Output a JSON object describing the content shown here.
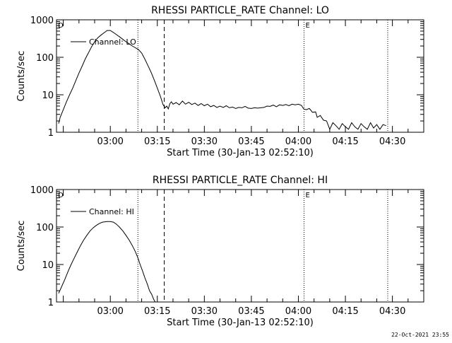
{
  "colors": {
    "background": "#ffffff",
    "foreground": "#000000"
  },
  "footer": {
    "timestamp": "22-Oct-2021 23:55"
  },
  "chart_data": [
    {
      "type": "line",
      "title": "RHESSI PARTICLE_RATE Channel: LO",
      "xlabel": "Start Time (30-Jan-13 02:52:10)",
      "ylabel": "Counts/sec",
      "yscale": "log",
      "xlim": [
        -17.17,
        100.0
      ],
      "ylim": [
        1,
        1000
      ],
      "xticks": [
        0,
        15,
        30,
        45,
        60,
        75,
        90
      ],
      "xticklabels": [
        "03:00",
        "03:15",
        "03:30",
        "03:45",
        "04:00",
        "04:15",
        "04:30"
      ],
      "yticks": [
        1,
        10,
        100,
        1000
      ],
      "yticklabels": [
        "1",
        "10",
        "100",
        "1000"
      ],
      "corner_labels": {
        "left": "D",
        "right": "E"
      },
      "markers": [
        {
          "x": 8.8,
          "style": "dotted"
        },
        {
          "x": 17.2,
          "style": "dashed"
        },
        {
          "x": 61.8,
          "style": "dotted"
        },
        {
          "x": 88.5,
          "style": "dotted"
        }
      ],
      "legend": {
        "entry": "Channel: LO",
        "placement": "top-left"
      },
      "series": [
        {
          "name": "Channel: LO",
          "points": [
            [
              -16.5,
              1.7
            ],
            [
              -16,
              2.5
            ],
            [
              -15,
              4
            ],
            [
              -14,
              6.5
            ],
            [
              -13,
              10
            ],
            [
              -12,
              15
            ],
            [
              -11,
              24
            ],
            [
              -10,
              38
            ],
            [
              -9,
              58
            ],
            [
              -8,
              90
            ],
            [
              -7,
              130
            ],
            [
              -6,
              190
            ],
            [
              -5,
              260
            ],
            [
              -4,
              330
            ],
            [
              -3,
              390
            ],
            [
              -2,
              450
            ],
            [
              -1,
              520
            ],
            [
              0,
              520
            ],
            [
              1,
              460
            ],
            [
              2,
              400
            ],
            [
              3,
              350
            ],
            [
              4,
              300
            ],
            [
              5,
              260
            ],
            [
              6,
              230
            ],
            [
              7,
              200
            ],
            [
              8,
              180
            ],
            [
              9,
              160
            ],
            [
              10,
              130
            ],
            [
              11,
              90
            ],
            [
              12,
              60
            ],
            [
              13,
              40
            ],
            [
              14,
              25
            ],
            [
              15,
              15
            ],
            [
              16,
              9
            ],
            [
              16.8,
              5.5
            ],
            [
              17.5,
              4.5
            ],
            [
              18,
              5
            ],
            [
              18.5,
              4.2
            ],
            [
              19,
              5.8
            ],
            [
              19.5,
              6.5
            ],
            [
              20,
              5.6
            ],
            [
              21,
              6.2
            ],
            [
              22,
              5.4
            ],
            [
              23,
              6.8
            ],
            [
              24,
              5.6
            ],
            [
              25,
              6.3
            ],
            [
              26,
              5.5
            ],
            [
              27,
              6
            ],
            [
              28,
              5.2
            ],
            [
              29,
              5.8
            ],
            [
              30,
              5.1
            ],
            [
              31,
              5.6
            ],
            [
              32,
              4.8
            ],
            [
              33,
              5.2
            ],
            [
              34,
              4.6
            ],
            [
              35,
              5
            ],
            [
              36,
              4.6
            ],
            [
              37,
              5.1
            ],
            [
              38,
              4.5
            ],
            [
              39,
              4.7
            ],
            [
              40,
              4.3
            ],
            [
              41,
              4.6
            ],
            [
              42,
              4.5
            ],
            [
              43,
              4.9
            ],
            [
              44,
              4.4
            ],
            [
              45,
              4.3
            ],
            [
              46,
              4.5
            ],
            [
              47,
              4.4
            ],
            [
              48,
              4.5
            ],
            [
              49,
              4.6
            ],
            [
              50,
              5
            ],
            [
              51,
              4.9
            ],
            [
              52,
              5.3
            ],
            [
              53,
              4.8
            ],
            [
              54,
              5.4
            ],
            [
              55,
              5.2
            ],
            [
              56,
              5.5
            ],
            [
              57,
              5.1
            ],
            [
              58,
              5.6
            ],
            [
              59,
              5.4
            ],
            [
              60,
              5.6
            ],
            [
              61,
              5.2
            ],
            [
              61.7,
              4.2
            ],
            [
              62.5,
              4
            ],
            [
              63.5,
              4.3
            ],
            [
              64.5,
              3.4
            ],
            [
              65.5,
              3.5
            ],
            [
              66,
              2.5
            ],
            [
              67,
              2.8
            ],
            [
              68,
              2.1
            ],
            [
              69,
              2
            ],
            [
              70,
              1.2
            ],
            [
              71,
              1.8
            ],
            [
              72,
              1.5
            ],
            [
              73,
              1.2
            ],
            [
              74,
              1.7
            ],
            [
              75,
              1.4
            ],
            [
              76,
              1.2
            ],
            [
              77,
              1.8
            ],
            [
              78,
              1.4
            ],
            [
              79,
              1.2
            ],
            [
              80,
              1.7
            ],
            [
              81,
              1.4
            ],
            [
              82,
              1.2
            ],
            [
              83,
              1.8
            ],
            [
              84,
              1.3
            ],
            [
              85,
              1.6
            ],
            [
              86,
              1.2
            ],
            [
              87,
              1.6
            ],
            [
              88,
              1.5
            ]
          ]
        }
      ]
    },
    {
      "type": "line",
      "title": "RHESSI PARTICLE_RATE Channel: HI",
      "xlabel": "Start Time (30-Jan-13 02:52:10)",
      "ylabel": "Counts/sec",
      "yscale": "log",
      "xlim": [
        -17.17,
        100.0
      ],
      "ylim": [
        1,
        1000
      ],
      "xticks": [
        0,
        15,
        30,
        45,
        60,
        75,
        90
      ],
      "xticklabels": [
        "03:00",
        "03:15",
        "03:30",
        "03:45",
        "04:00",
        "04:15",
        "04:30"
      ],
      "yticks": [
        1,
        10,
        100,
        1000
      ],
      "yticklabels": [
        "1",
        "10",
        "100",
        "1000"
      ],
      "corner_labels": {
        "left": "D",
        "right": "E"
      },
      "markers": [
        {
          "x": 8.8,
          "style": "dotted"
        },
        {
          "x": 17.2,
          "style": "dashed"
        },
        {
          "x": 61.8,
          "style": "dotted"
        },
        {
          "x": 88.5,
          "style": "dotted"
        }
      ],
      "legend": {
        "entry": "Channel: HI",
        "placement": "top-left"
      },
      "series": [
        {
          "name": "Channel: HI",
          "points": [
            [
              -16.5,
              1.7
            ],
            [
              -15.5,
              2.6
            ],
            [
              -14.5,
              4
            ],
            [
              -13.5,
              6.5
            ],
            [
              -12.5,
              10
            ],
            [
              -11.5,
              15
            ],
            [
              -10.5,
              22
            ],
            [
              -9.5,
              32
            ],
            [
              -8.5,
              45
            ],
            [
              -7.5,
              60
            ],
            [
              -6.5,
              78
            ],
            [
              -5.5,
              95
            ],
            [
              -4.5,
              110
            ],
            [
              -3.5,
              125
            ],
            [
              -2.5,
              135
            ],
            [
              -1,
              140
            ],
            [
              0,
              140
            ],
            [
              1,
              135
            ],
            [
              2,
              118
            ],
            [
              3,
              98
            ],
            [
              4,
              78
            ],
            [
              5,
              60
            ],
            [
              6,
              45
            ],
            [
              7,
              32
            ],
            [
              8,
              22
            ],
            [
              8.8,
              15
            ],
            [
              9.5,
              10
            ],
            [
              10.2,
              7
            ],
            [
              11,
              4.5
            ],
            [
              11.8,
              3
            ],
            [
              12.5,
              2
            ],
            [
              13.2,
              1.6
            ],
            [
              13.8,
              1.2
            ],
            [
              14.3,
              1.0
            ]
          ]
        }
      ]
    }
  ]
}
